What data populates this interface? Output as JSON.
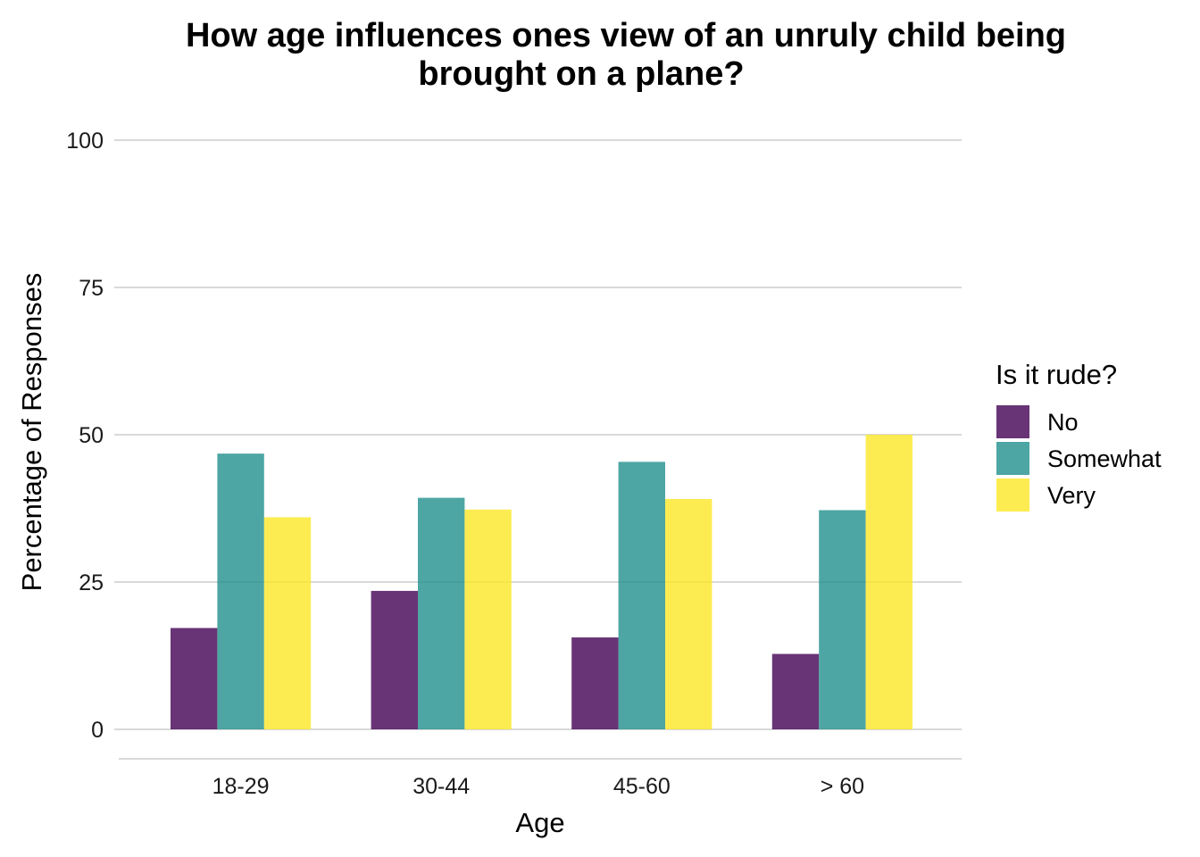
{
  "chart_data": {
    "type": "bar",
    "title_line1": "How age influences ones view of an unruly child being",
    "title_line2": "brought on a plane?",
    "xlabel": "Age",
    "ylabel": "Percentage of Responses",
    "categories": [
      "18-29",
      "30-44",
      "45-60",
      "> 60"
    ],
    "ylim": [
      0,
      100
    ],
    "yticks": [
      "0",
      "25",
      "50",
      "75",
      "100"
    ],
    "grid": true,
    "legend": {
      "title": "Is it rude?",
      "position": "right"
    },
    "series": [
      {
        "name": "No",
        "color": "#440154",
        "values": [
          17.2,
          23.5,
          15.6,
          12.8
        ]
      },
      {
        "name": "Somewhat",
        "color": "#21908C",
        "values": [
          46.8,
          39.3,
          45.4,
          37.2
        ]
      },
      {
        "name": "Very",
        "color": "#FDE725",
        "values": [
          36.0,
          37.3,
          39.1,
          50.0
        ]
      }
    ]
  }
}
